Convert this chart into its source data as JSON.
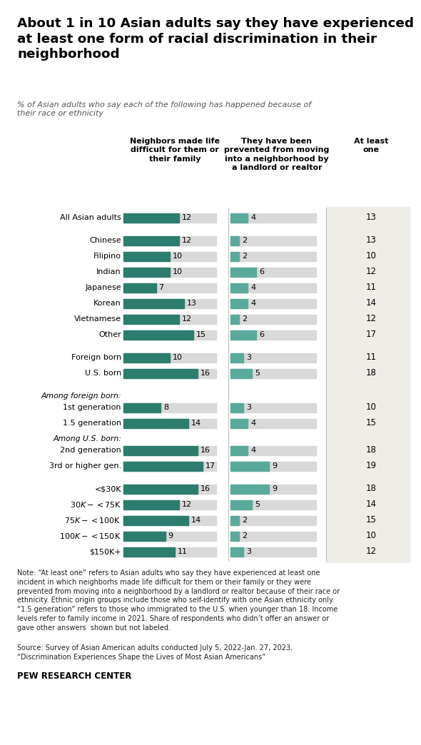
{
  "title_line1": "About 1 in 10 Asian adults say they have experienced",
  "title_line2": "at least one form of racial discrimination in their",
  "title_line3": "neighborhood",
  "subtitle": "% of Asian adults who say each of the following has happened because of\ntheir race or ethnicity",
  "col1_header": "Neighbors made life\ndifficult for them or\ntheir family",
  "col2_header": "They have been\nprevented from moving\ninto a neighborhood by\na landlord or realtor",
  "col3_header": "At least\none",
  "display_rows": [
    "All Asian adults",
    "_sep1",
    "Chinese",
    "Filipino",
    "Indian",
    "Japanese",
    "Korean",
    "Vietnamese",
    "Other",
    "_sep2",
    "Foreign born",
    "U.S. born",
    "_sep3",
    "Among foreign born:",
    "1st generation",
    "1.5 generation",
    "Among U.S. born:",
    "2nd generation",
    "3rd or higher gen.",
    "_sep4",
    "<$30K",
    "$30K-<$75K",
    "$75K-<$100K",
    "$100K-<$150K",
    "$150K+"
  ],
  "col1_values": {
    "All Asian adults": 12,
    "Chinese": 12,
    "Filipino": 10,
    "Indian": 10,
    "Japanese": 7,
    "Korean": 13,
    "Vietnamese": 12,
    "Other": 15,
    "Foreign born": 10,
    "U.S. born": 16,
    "1st generation": 8,
    "1.5 generation": 14,
    "2nd generation": 16,
    "3rd or higher gen.": 17,
    "<$30K": 16,
    "$30K-<$75K": 12,
    "$75K-<$100K": 14,
    "$100K-<$150K": 9,
    "$150K+": 11
  },
  "col2_values": {
    "All Asian adults": 4,
    "Chinese": 2,
    "Filipino": 2,
    "Indian": 6,
    "Japanese": 4,
    "Korean": 4,
    "Vietnamese": 2,
    "Other": 6,
    "Foreign born": 3,
    "U.S. born": 5,
    "1st generation": 3,
    "1.5 generation": 4,
    "2nd generation": 4,
    "3rd or higher gen.": 9,
    "<$30K": 9,
    "$30K-<$75K": 5,
    "$75K-<$100K": 2,
    "$100K-<$150K": 2,
    "$150K+": 3
  },
  "col3_values": {
    "All Asian adults": 13,
    "Chinese": 13,
    "Filipino": 10,
    "Indian": 12,
    "Japanese": 11,
    "Korean": 14,
    "Vietnamese": 12,
    "Other": 17,
    "Foreign born": 11,
    "U.S. born": 18,
    "1st generation": 10,
    "1.5 generation": 15,
    "2nd generation": 18,
    "3rd or higher gen.": 19,
    "<$30K": 18,
    "$30K-<$75K": 14,
    "$75K-<$100K": 15,
    "$100K-<$150K": 10,
    "$150K+": 12
  },
  "bar_color_dark": "#2d7d6e",
  "bar_color_medium": "#5aaa9b",
  "bar_bg_color": "#d9d9d9",
  "bar_max": 20,
  "note_text": "Note: “At least one” refers to Asian adults who say they have experienced at least one\nincident in which neighborhs made life difficult for them or their family or they were\nprevented from moving into a neighborhood by a landlord or realtor because of their race or\nethnicity. Ethnic origin groups include those who self-identify with one Asian ethnicity only.\n“1.5 generation” refers to those who immigrated to the U.S. when younger than 18. Income\nlevels refer to family income in 2021. Share of respondents who didn’t offer an answer or\ngave other answers  shown but not labeled.",
  "source_text": "Source: Survey of Asian American adults conducted July 5, 2022-Jan. 27, 2023.\n“Discrimination Experiences Shape the Lives of Most Asian Americans”",
  "pew_text": "PEW RESEARCH CENTER",
  "bg_color": "#ffffff",
  "right_panel_bg": "#efede8",
  "italic_labels": [
    "Among foreign born:",
    "Among U.S. born:"
  ],
  "sep_rows": [
    "_sep1",
    "_sep2",
    "_sep3",
    "_sep4"
  ]
}
